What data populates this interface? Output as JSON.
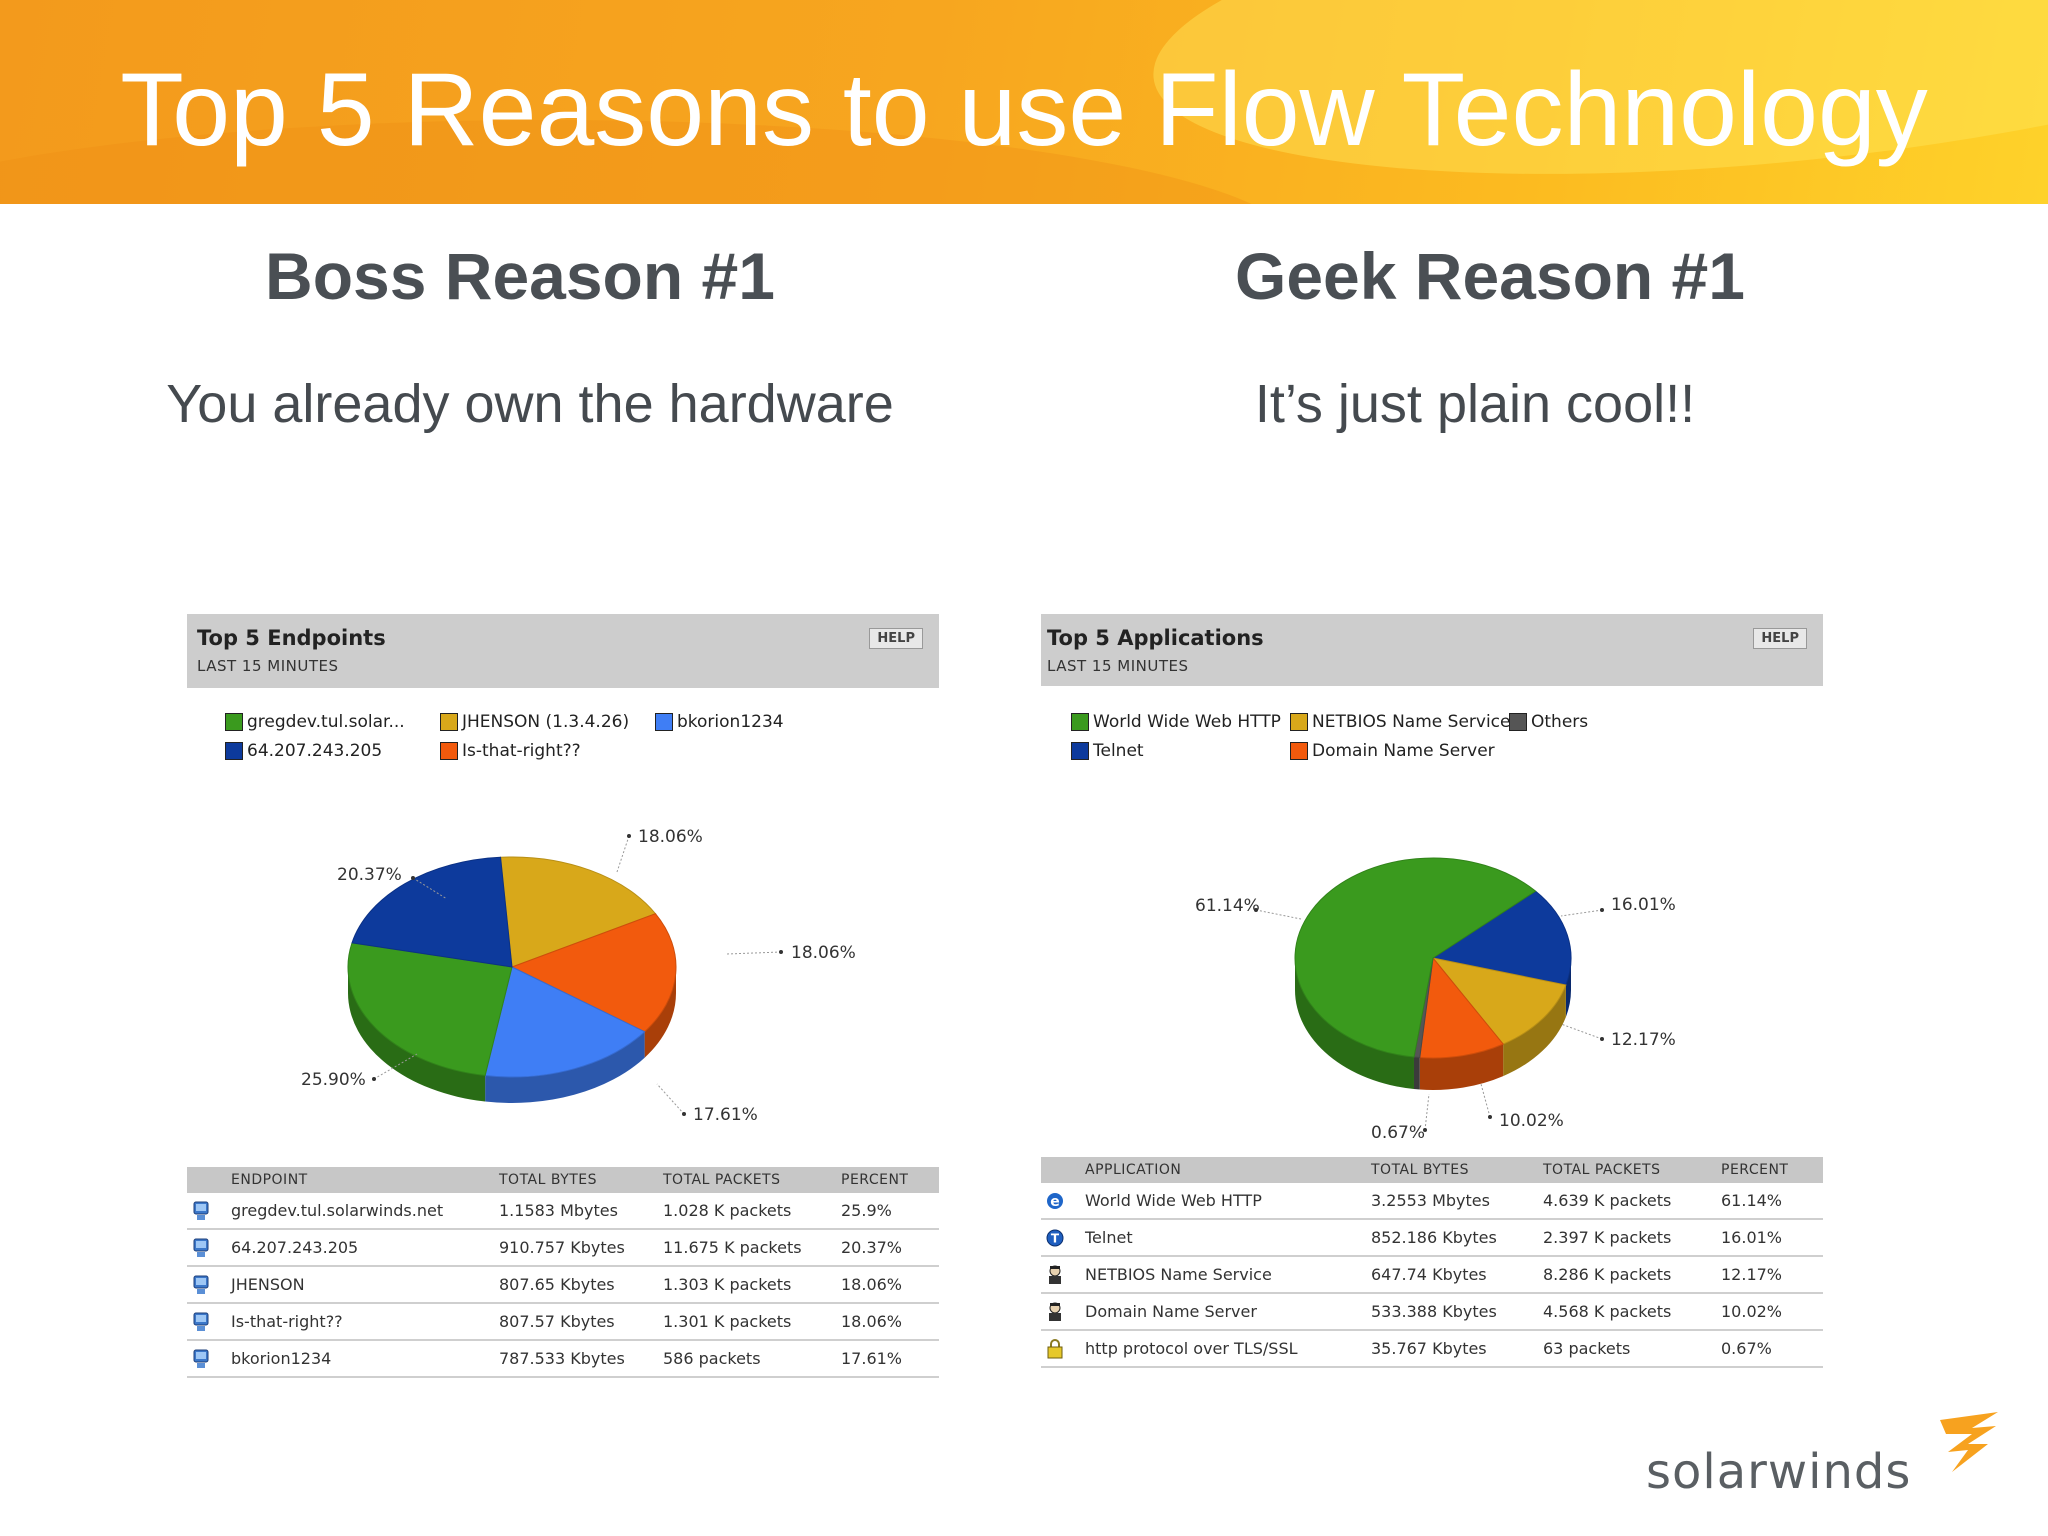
{
  "slide": {
    "title": "Top 5 Reasons to use Flow Technology",
    "left_heading": "Boss Reason #1",
    "left_text": "You already own the hardware",
    "right_heading": "Geek Reason #1",
    "right_text": "It’s just plain cool!!"
  },
  "colors": {
    "banner": "#f7a61f",
    "green": "#3a9a1e",
    "gold": "#d8a81a",
    "blue_light": "#3f7ef5",
    "blue_dark": "#0d3a9c",
    "orange": "#f25a0d",
    "gray": "#555555"
  },
  "endpoints": {
    "title": "Top 5 Endpoints",
    "subtitle": "LAST 15 MINUTES",
    "help": "HELP",
    "legend": [
      {
        "label": "gregdev.tul.solar...",
        "color": "#3a9a1e"
      },
      {
        "label": "JHENSON (1.3.4.26)",
        "color": "#d8a81a"
      },
      {
        "label": "bkorion1234",
        "color": "#3f7ef5"
      },
      {
        "label": "64.207.243.205",
        "color": "#0d3a9c"
      },
      {
        "label": "Is-that-right??",
        "color": "#f25a0d"
      }
    ],
    "pie_labels": [
      "25.90%",
      "20.37%",
      "18.06%",
      "18.06%",
      "17.61%"
    ],
    "columns": [
      "ENDPOINT",
      "TOTAL BYTES",
      "TOTAL PACKETS",
      "PERCENT"
    ],
    "rows": [
      {
        "name": "gregdev.tul.solarwinds.net",
        "bytes": "1.1583 Mbytes",
        "packets": "1.028 K packets",
        "percent": "25.9%"
      },
      {
        "name": "64.207.243.205",
        "bytes": "910.757 Kbytes",
        "packets": "11.675 K packets",
        "percent": "20.37%"
      },
      {
        "name": "JHENSON",
        "bytes": "807.65 Kbytes",
        "packets": "1.303 K packets",
        "percent": "18.06%"
      },
      {
        "name": "Is-that-right??",
        "bytes": "807.57 Kbytes",
        "packets": "1.301 K packets",
        "percent": "18.06%"
      },
      {
        "name": "bkorion1234",
        "bytes": "787.533 Kbytes",
        "packets": "586 packets",
        "percent": "17.61%"
      }
    ]
  },
  "applications": {
    "title": "Top 5 Applications",
    "subtitle": "LAST 15 MINUTES",
    "help": "HELP",
    "legend": [
      {
        "label": "World Wide Web HTTP",
        "color": "#3a9a1e"
      },
      {
        "label": "NETBIOS Name Service",
        "color": "#d8a81a"
      },
      {
        "label": "Others",
        "color": "#555555"
      },
      {
        "label": "Telnet",
        "color": "#0d3a9c"
      },
      {
        "label": "Domain Name Server",
        "color": "#f25a0d"
      }
    ],
    "pie_labels": [
      "61.14%",
      "16.01%",
      "12.17%",
      "10.02%",
      "0.67%"
    ],
    "columns": [
      "APPLICATION",
      "TOTAL BYTES",
      "TOTAL PACKETS",
      "PERCENT"
    ],
    "rows": [
      {
        "icon": "ie-icon",
        "name": "World Wide Web HTTP",
        "bytes": "3.2553 Mbytes",
        "packets": "4.639 K packets",
        "percent": "61.14%"
      },
      {
        "icon": "telnet-icon",
        "name": "Telnet",
        "bytes": "852.186 Kbytes",
        "packets": "2.397 K packets",
        "percent": "16.01%"
      },
      {
        "icon": "agent-icon",
        "name": "NETBIOS Name Service",
        "bytes": "647.74 Kbytes",
        "packets": "8.286 K packets",
        "percent": "12.17%"
      },
      {
        "icon": "agent-icon",
        "name": "Domain Name Server",
        "bytes": "533.388 Kbytes",
        "packets": "4.568 K packets",
        "percent": "10.02%"
      },
      {
        "icon": "lock-icon",
        "name": "http protocol over TLS/SSL",
        "bytes": "35.767 Kbytes",
        "packets": "63 packets",
        "percent": "0.67%"
      }
    ]
  },
  "logo": {
    "text": "solarwinds"
  }
}
